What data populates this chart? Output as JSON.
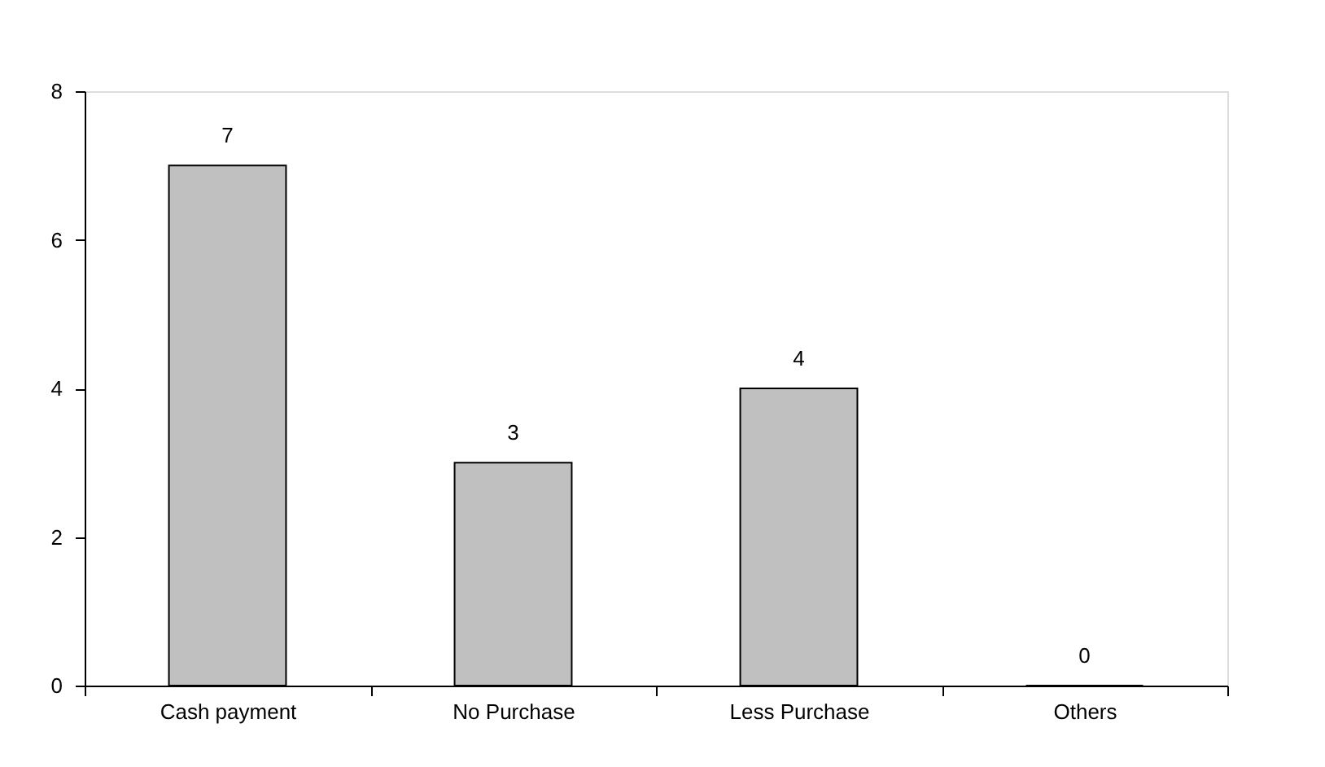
{
  "chart_data": {
    "type": "bar",
    "categories": [
      "Cash payment",
      "No Purchase",
      "Less Purchase",
      "Others"
    ],
    "values": [
      7,
      3,
      4,
      0
    ],
    "color": "#c0c0c0",
    "ylim": [
      0,
      8
    ],
    "yticks": [
      0,
      2,
      4,
      6,
      8
    ],
    "grid": false,
    "data_labels": true
  }
}
